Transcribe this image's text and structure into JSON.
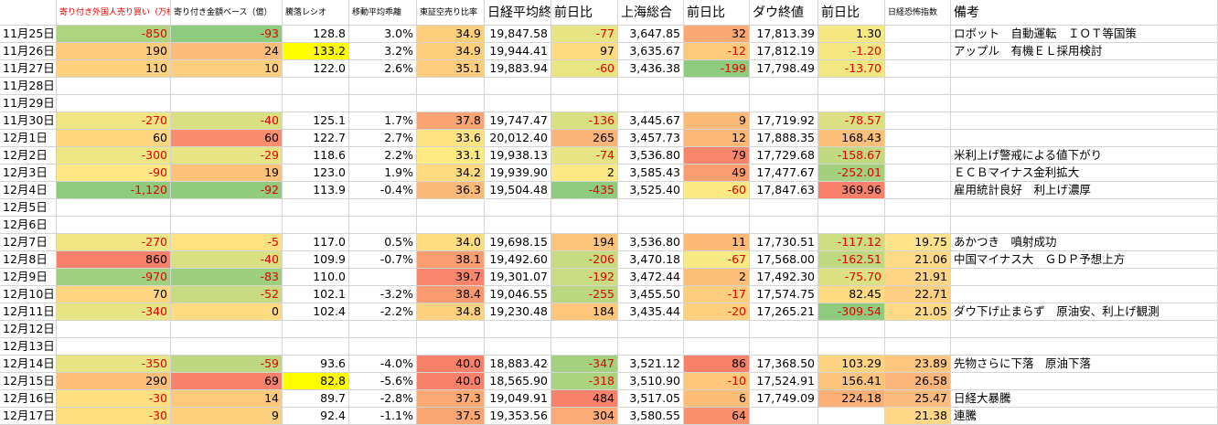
{
  "columns": [
    "寄り付き外国人売り買い（万株）",
    "寄り付き金額ベース（億）",
    "騰落レシオ",
    "移動平均乖離",
    "東証空売り比率",
    "日経平均終値",
    "前日比",
    "上海総合",
    "前日比",
    "ダウ終値",
    "前日比",
    "日経恐怖指数",
    "備考"
  ],
  "rows": [
    [
      "11月25日",
      "-850",
      "-93",
      "128.8",
      "3.0%",
      "34.9",
      "19,847.58",
      "-77",
      "3,647.85",
      "32",
      "17,813.39",
      "1.30",
      null,
      "ロボット　自動運転　ＩＯＴ等国策"
    ],
    [
      "11月26日",
      "190",
      "24",
      "133.2",
      "3.2%",
      "34.9",
      "19,944.41",
      "97",
      "3,635.67",
      "-12",
      "17,812.19",
      "-1.20",
      null,
      "アップル　有機ＥＬ採用検討"
    ],
    [
      "11月27日",
      "110",
      "10",
      "122.0",
      "2.6%",
      "35.1",
      "19,883.94",
      "-60",
      "3,436.38",
      "-199",
      "17,798.49",
      "-13.70",
      null,
      null
    ],
    [
      "11月28日",
      null,
      null,
      null,
      null,
      null,
      null,
      null,
      null,
      null,
      null,
      null,
      null,
      null
    ],
    [
      "11月29日",
      null,
      null,
      null,
      null,
      null,
      null,
      null,
      null,
      null,
      null,
      null,
      null,
      null
    ],
    [
      "11月30日",
      "-270",
      "-40",
      "125.1",
      "1.7%",
      "37.8",
      "19,747.47",
      "-136",
      "3,445.67",
      "9",
      "17,719.92",
      "-78.57",
      null,
      null
    ],
    [
      "12月1日",
      "60",
      "60",
      "122.7",
      "2.7%",
      "33.6",
      "20,012.40",
      "265",
      "3,457.73",
      "12",
      "17,888.35",
      "168.43",
      null,
      null
    ],
    [
      "12月2日",
      "-300",
      "-29",
      "118.6",
      "2.2%",
      "33.1",
      "19,938.13",
      "-74",
      "3,536.80",
      "79",
      "17,729.68",
      "-158.67",
      null,
      "米利上げ警戒による値下がり"
    ],
    [
      "12月3日",
      "-90",
      "19",
      "123.0",
      "1.9%",
      "34.2",
      "19,939.90",
      "2",
      "3,585.43",
      "49",
      "17,477.67",
      "-252.01",
      null,
      "ＥＣＢマイナス金利拡大"
    ],
    [
      "12月4日",
      "-1,120",
      "-92",
      "113.9",
      "-0.4%",
      "36.3",
      "19,504.48",
      "-435",
      "3,525.40",
      "-60",
      "17,847.63",
      "369.96",
      null,
      "雇用統計良好　利上げ濃厚"
    ],
    [
      "12月5日",
      null,
      null,
      null,
      null,
      null,
      null,
      null,
      null,
      null,
      null,
      null,
      null,
      null
    ],
    [
      "12月6日",
      null,
      null,
      null,
      null,
      null,
      null,
      null,
      null,
      null,
      null,
      null,
      null,
      null
    ],
    [
      "12月7日",
      "-270",
      "-5",
      "117.0",
      "0.5%",
      "34.0",
      "19,698.15",
      "194",
      "3,536.80",
      "11",
      "17,730.51",
      "-117.12",
      "19.75",
      "あかつき　噴射成功"
    ],
    [
      "12月8日",
      "860",
      "-40",
      "109.9",
      "-0.7%",
      "38.1",
      "19,492.60",
      "-206",
      "3,470.18",
      "-67",
      "17,568.00",
      "-162.51",
      "21.06",
      "中国マイナス大　ＧＤＰ予想上方"
    ],
    [
      "12月9日",
      "-970",
      "-83",
      "110.0",
      null,
      "39.7",
      "19,301.07",
      "-192",
      "3,472.44",
      "2",
      "17,492.30",
      "-75.70",
      "21.91",
      null
    ],
    [
      "12月10日",
      "70",
      "-52",
      "102.1",
      "-3.2%",
      "38.4",
      "19,046.55",
      "-255",
      "3,455.50",
      "-17",
      "17,574.75",
      "82.45",
      "22.71",
      null
    ],
    [
      "12月11日",
      "-340",
      "0",
      "102.4",
      "-2.2%",
      "34.8",
      "19,230.48",
      "184",
      "3,435.44",
      "-20",
      "17,265.21",
      "-309.54",
      "21.05",
      "ダウ下げ止まらず　原油安、利上げ観測"
    ],
    [
      "12月12日",
      null,
      null,
      null,
      null,
      null,
      null,
      null,
      null,
      null,
      null,
      null,
      null,
      null
    ],
    [
      "12月13日",
      null,
      null,
      null,
      null,
      null,
      null,
      null,
      null,
      null,
      null,
      null,
      null,
      null
    ],
    [
      "12月14日",
      "-350",
      "-59",
      "93.6",
      "-4.0%",
      "40.0",
      "18,883.42",
      "-347",
      "3,521.12",
      "86",
      "17,368.50",
      "103.29",
      "23.89",
      "先物さらに下落　原油下落"
    ],
    [
      "12月15日",
      "290",
      "69",
      "82.8",
      "-5.6%",
      "40.0",
      "18,565.90",
      "-318",
      "3,510.90",
      "-10",
      "17,524.91",
      "156.41",
      "26.58",
      null
    ],
    [
      "12月16日",
      "-30",
      "14",
      "89.7",
      "-2.8%",
      "37.3",
      "19,049.91",
      "484",
      "3,517.05",
      "6",
      "17,749.09",
      "224.18",
      "25.47",
      "日経大暴騰"
    ],
    [
      "12月17日",
      "-30",
      "9",
      "92.4",
      "-1.1%",
      "37.5",
      "19,353.56",
      "304",
      "3,580.55",
      "64",
      null,
      null,
      "21.38",
      "連騰"
    ]
  ]
}
